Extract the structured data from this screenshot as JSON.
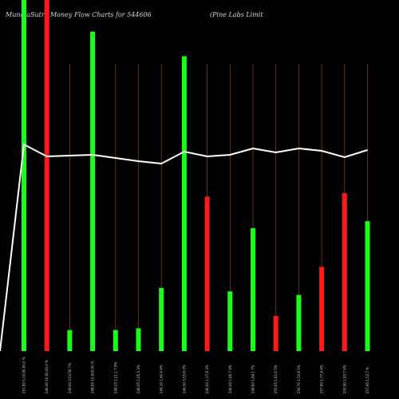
{
  "header": {
    "title": "MunafaSutra  Money Flow  Charts for 544606",
    "company": "(Pine   Labs Limit"
  },
  "colors": {
    "background": "#000000",
    "up": "#1aff1a",
    "down": "#ff1a1a",
    "line": "#ffffff",
    "grid": "#8a4a10"
  },
  "chart_data": {
    "type": "bar",
    "title": "MunafaSutra  Money Flow  Charts for 544606",
    "series": [
      {
        "name": "money-flow-volume",
        "values": [
          100,
          100,
          6,
          91,
          6,
          6.5,
          18,
          84,
          44,
          17,
          35,
          10,
          16,
          24,
          45,
          37
        ]
      },
      {
        "name": "price-line",
        "values": [
          255.5,
          248,
          248.5,
          249,
          247,
          245,
          243.5,
          251,
          248,
          249,
          253,
          250.5,
          253,
          251.5,
          247.5,
          252
        ]
      }
    ],
    "directions": [
      "up",
      "down",
      "up",
      "up",
      "up",
      "up",
      "up",
      "up",
      "down",
      "up",
      "up",
      "down",
      "up",
      "down",
      "down",
      "up"
    ],
    "categories": [
      "251.90 5,10,00,00,0 %",
      "246.40 10,00,00,0 %",
      "249.00 3,03,56 7%",
      "248.95 10,000,00 %",
      "248.25 2,21,1 7 8%",
      "248.05 2,05,4 3%",
      "249.10 1,40,4 4%",
      "246.30 3,55,8 0%",
      "246.00 1,17,8 3%",
      "246.00 1,66,7 9%",
      "248.60 1,84,1 7%",
      "255.65 1,61,6 5%",
      "256.70 1,53,8 5%",
      "257.90 1,77,4 4%",
      "255.90 1,83,7 4%",
      "257.95 1,53,7 %"
    ],
    "ylim": [
      0,
      100
    ],
    "grid": true,
    "xlabel": "",
    "ylabel": ""
  }
}
